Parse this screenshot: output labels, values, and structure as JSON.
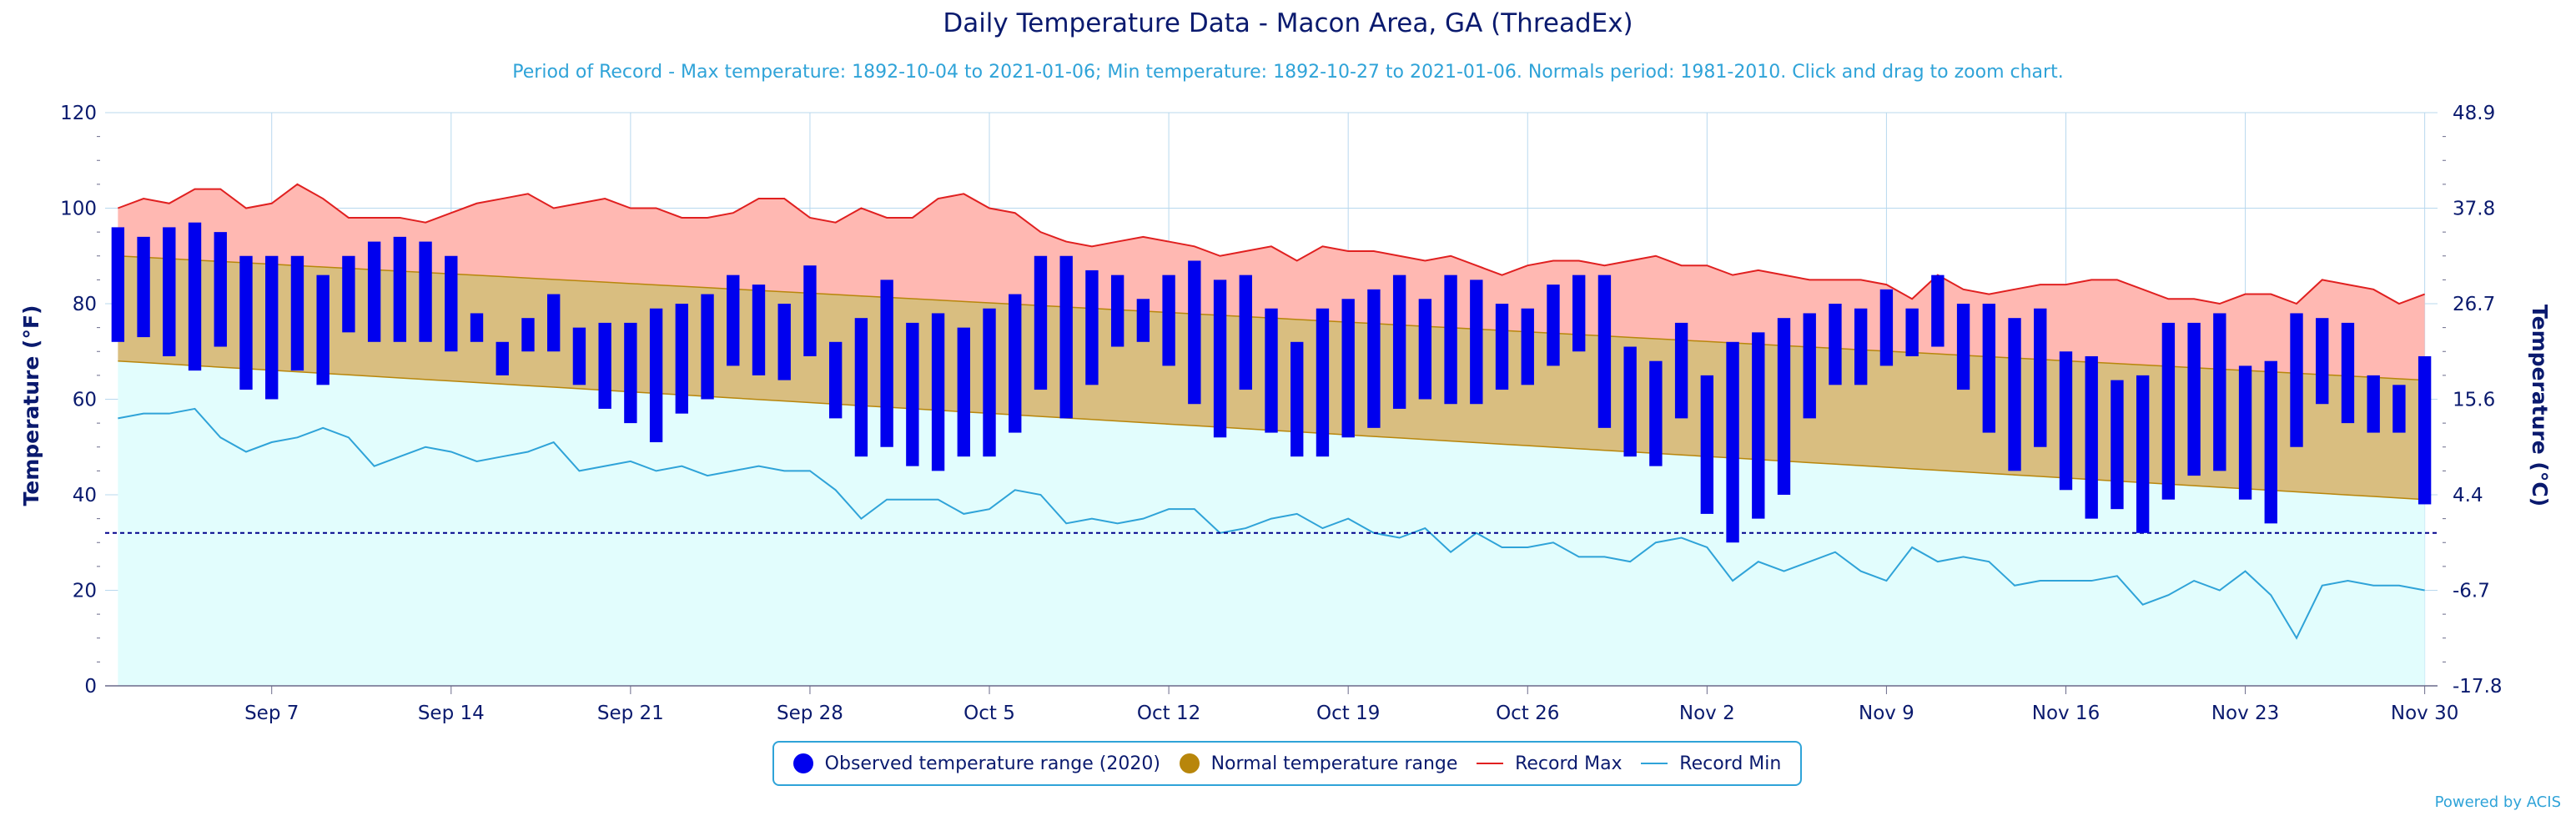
{
  "title": "Daily Temperature Data - Macon Area, GA (ThreadEx)",
  "subtitle": "Period of Record - Max temperature: 1892-10-04 to 2021-01-06; Min temperature: 1892-10-27 to 2021-01-06. Normals period: 1981-2010. Click and drag to zoom chart.",
  "credits": "Powered by ACIS",
  "legend": {
    "observed": "Observed temperature range (2020)",
    "normal": "Normal temperature range",
    "record_max": "Record Max",
    "record_min": "Record Min"
  },
  "colors": {
    "observed": "#0000ee",
    "normal_fill": "#d9be80",
    "normal_line": "#b8860b",
    "record_max_fill": "#ffb8b2",
    "record_max_line": "#e02020",
    "record_min_fill": "#e2fdfd",
    "record_min_line": "#2fa3d8",
    "freezing_line": "#00008b",
    "grid": "#b8d8ee"
  },
  "chart_data": {
    "type": "bar",
    "xlabel": "",
    "ylabel": "Temperature (°F)",
    "ylabel_right": "Temperature (°C)",
    "ylim": [
      0,
      120
    ],
    "yticks": [
      0,
      20,
      40,
      60,
      80,
      100,
      120
    ],
    "yticks_right": [
      "-17.8",
      "-6.7",
      "4.4",
      "15.6",
      "26.7",
      "37.8",
      "48.9"
    ],
    "x_tick_labels": [
      "Sep 7",
      "Sep 14",
      "Sep 21",
      "Sep 28",
      "Oct 5",
      "Oct 12",
      "Oct 19",
      "Oct 26",
      "Nov 2",
      "Nov 9",
      "Nov 16",
      "Nov 23",
      "Nov 30"
    ],
    "freezing_line": 32,
    "normal_max": [
      90,
      64
    ],
    "normal_min": [
      68,
      39
    ],
    "record_max": [
      100,
      102,
      101,
      104,
      104,
      100,
      101,
      105,
      102,
      98,
      98,
      98,
      97,
      99,
      101,
      102,
      103,
      100,
      101,
      102,
      100,
      100,
      98,
      98,
      99,
      102,
      102,
      98,
      97,
      100,
      98,
      98,
      102,
      103,
      100,
      99,
      95,
      93,
      92,
      93,
      94,
      93,
      92,
      90,
      91,
      92,
      89,
      92,
      91,
      91,
      90,
      89,
      90,
      88,
      86,
      88,
      89,
      89,
      88,
      89,
      90,
      88,
      88,
      86,
      87,
      86,
      85,
      85,
      85,
      84,
      81,
      86,
      83,
      82,
      83,
      84,
      84,
      85,
      85,
      83,
      81,
      81,
      80,
      82,
      82,
      80,
      85,
      84,
      83,
      80,
      82
    ],
    "record_min": [
      56,
      57,
      57,
      58,
      52,
      49,
      51,
      52,
      54,
      52,
      46,
      48,
      50,
      49,
      47,
      48,
      49,
      51,
      45,
      46,
      47,
      45,
      46,
      44,
      45,
      46,
      45,
      45,
      41,
      35,
      39,
      39,
      39,
      36,
      37,
      41,
      40,
      34,
      35,
      34,
      35,
      37,
      37,
      32,
      33,
      35,
      36,
      33,
      35,
      32,
      31,
      33,
      28,
      32,
      29,
      29,
      30,
      27,
      27,
      26,
      30,
      31,
      29,
      22,
      26,
      24,
      26,
      28,
      24,
      22,
      29,
      26,
      27,
      26,
      21,
      22,
      22,
      22,
      23,
      17,
      19,
      22,
      20,
      24,
      19,
      10,
      21,
      22,
      21,
      21,
      20
    ],
    "observed": [
      {
        "min": 72,
        "max": 96
      },
      {
        "min": 73,
        "max": 94
      },
      {
        "min": 69,
        "max": 96
      },
      {
        "min": 66,
        "max": 97
      },
      {
        "min": 71,
        "max": 95
      },
      {
        "min": 62,
        "max": 90
      },
      {
        "min": 60,
        "max": 90
      },
      {
        "min": 66,
        "max": 90
      },
      {
        "min": 63,
        "max": 86
      },
      {
        "min": 74,
        "max": 90
      },
      {
        "min": 72,
        "max": 93
      },
      {
        "min": 72,
        "max": 94
      },
      {
        "min": 72,
        "max": 93
      },
      {
        "min": 70,
        "max": 90
      },
      {
        "min": 72,
        "max": 78
      },
      {
        "min": 65,
        "max": 72
      },
      {
        "min": 70,
        "max": 77
      },
      {
        "min": 70,
        "max": 82
      },
      {
        "min": 63,
        "max": 75
      },
      {
        "min": 58,
        "max": 76
      },
      {
        "min": 55,
        "max": 76
      },
      {
        "min": 51,
        "max": 79
      },
      {
        "min": 57,
        "max": 80
      },
      {
        "min": 60,
        "max": 82
      },
      {
        "min": 67,
        "max": 86
      },
      {
        "min": 65,
        "max": 84
      },
      {
        "min": 64,
        "max": 80
      },
      {
        "min": 69,
        "max": 88
      },
      {
        "min": 56,
        "max": 72
      },
      {
        "min": 48,
        "max": 77
      },
      {
        "min": 50,
        "max": 85
      },
      {
        "min": 46,
        "max": 76
      },
      {
        "min": 45,
        "max": 78
      },
      {
        "min": 48,
        "max": 75
      },
      {
        "min": 48,
        "max": 79
      },
      {
        "min": 53,
        "max": 82
      },
      {
        "min": 62,
        "max": 90
      },
      {
        "min": 56,
        "max": 90
      },
      {
        "min": 63,
        "max": 87
      },
      {
        "min": 71,
        "max": 86
      },
      {
        "min": 72,
        "max": 81
      },
      {
        "min": 67,
        "max": 86
      },
      {
        "min": 59,
        "max": 89
      },
      {
        "min": 52,
        "max": 85
      },
      {
        "min": 62,
        "max": 86
      },
      {
        "min": 53,
        "max": 79
      },
      {
        "min": 48,
        "max": 72
      },
      {
        "min": 48,
        "max": 79
      },
      {
        "min": 52,
        "max": 81
      },
      {
        "min": 54,
        "max": 83
      },
      {
        "min": 58,
        "max": 86
      },
      {
        "min": 60,
        "max": 81
      },
      {
        "min": 59,
        "max": 86
      },
      {
        "min": 59,
        "max": 85
      },
      {
        "min": 62,
        "max": 80
      },
      {
        "min": 63,
        "max": 79
      },
      {
        "min": 67,
        "max": 84
      },
      {
        "min": 70,
        "max": 86
      },
      {
        "min": 54,
        "max": 86
      },
      {
        "min": 48,
        "max": 71
      },
      {
        "min": 46,
        "max": 68
      },
      {
        "min": 56,
        "max": 76
      },
      {
        "min": 36,
        "max": 65
      },
      {
        "min": 30,
        "max": 72
      },
      {
        "min": 35,
        "max": 74
      },
      {
        "min": 40,
        "max": 77
      },
      {
        "min": 56,
        "max": 78
      },
      {
        "min": 63,
        "max": 80
      },
      {
        "min": 63,
        "max": 79
      },
      {
        "min": 67,
        "max": 83
      },
      {
        "min": 69,
        "max": 79
      },
      {
        "min": 71,
        "max": 86
      },
      {
        "min": 62,
        "max": 80
      },
      {
        "min": 53,
        "max": 80
      },
      {
        "min": 45,
        "max": 77
      },
      {
        "min": 50,
        "max": 79
      },
      {
        "min": 41,
        "max": 70
      },
      {
        "min": 35,
        "max": 69
      },
      {
        "min": 37,
        "max": 64
      },
      {
        "min": 32,
        "max": 65
      },
      {
        "min": 39,
        "max": 76
      },
      {
        "min": 44,
        "max": 76
      },
      {
        "min": 45,
        "max": 78
      },
      {
        "min": 39,
        "max": 67
      },
      {
        "min": 34,
        "max": 68
      },
      {
        "min": 50,
        "max": 78
      },
      {
        "min": 59,
        "max": 77
      },
      {
        "min": 55,
        "max": 76
      },
      {
        "min": 53,
        "max": 65
      },
      {
        "min": 53,
        "max": 63
      },
      {
        "min": 38,
        "max": 69
      }
    ]
  }
}
